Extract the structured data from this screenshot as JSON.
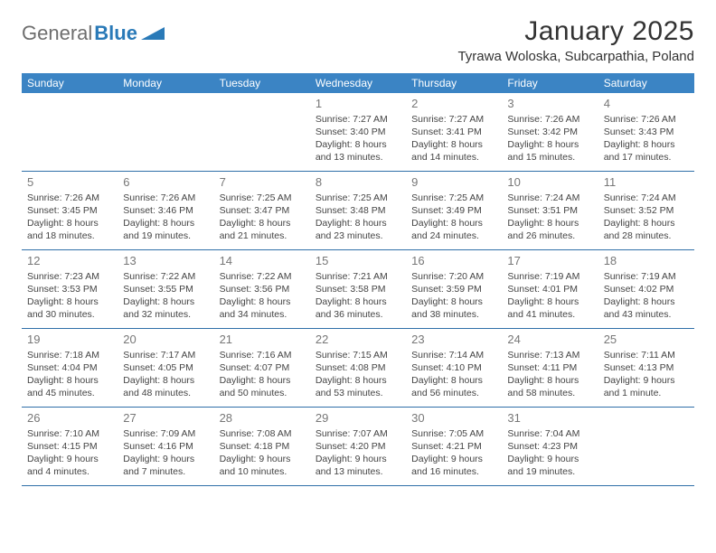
{
  "logo": {
    "general": "General",
    "blue": "Blue"
  },
  "title": "January 2025",
  "location": "Tyrawa Woloska, Subcarpathia, Poland",
  "colors": {
    "header_bg": "#3b84c4",
    "header_text": "#ffffff",
    "rule": "#2f6fa8",
    "daynum": "#777777",
    "body_text": "#444444",
    "logo_grey": "#6e6e6e",
    "logo_blue": "#2a7ab8",
    "page_bg": "#ffffff"
  },
  "day_names": [
    "Sunday",
    "Monday",
    "Tuesday",
    "Wednesday",
    "Thursday",
    "Friday",
    "Saturday"
  ],
  "weeks": [
    [
      null,
      null,
      null,
      {
        "n": "1",
        "sr": "Sunrise: 7:27 AM",
        "ss": "Sunset: 3:40 PM",
        "d1": "Daylight: 8 hours",
        "d2": "and 13 minutes."
      },
      {
        "n": "2",
        "sr": "Sunrise: 7:27 AM",
        "ss": "Sunset: 3:41 PM",
        "d1": "Daylight: 8 hours",
        "d2": "and 14 minutes."
      },
      {
        "n": "3",
        "sr": "Sunrise: 7:26 AM",
        "ss": "Sunset: 3:42 PM",
        "d1": "Daylight: 8 hours",
        "d2": "and 15 minutes."
      },
      {
        "n": "4",
        "sr": "Sunrise: 7:26 AM",
        "ss": "Sunset: 3:43 PM",
        "d1": "Daylight: 8 hours",
        "d2": "and 17 minutes."
      }
    ],
    [
      {
        "n": "5",
        "sr": "Sunrise: 7:26 AM",
        "ss": "Sunset: 3:45 PM",
        "d1": "Daylight: 8 hours",
        "d2": "and 18 minutes."
      },
      {
        "n": "6",
        "sr": "Sunrise: 7:26 AM",
        "ss": "Sunset: 3:46 PM",
        "d1": "Daylight: 8 hours",
        "d2": "and 19 minutes."
      },
      {
        "n": "7",
        "sr": "Sunrise: 7:25 AM",
        "ss": "Sunset: 3:47 PM",
        "d1": "Daylight: 8 hours",
        "d2": "and 21 minutes."
      },
      {
        "n": "8",
        "sr": "Sunrise: 7:25 AM",
        "ss": "Sunset: 3:48 PM",
        "d1": "Daylight: 8 hours",
        "d2": "and 23 minutes."
      },
      {
        "n": "9",
        "sr": "Sunrise: 7:25 AM",
        "ss": "Sunset: 3:49 PM",
        "d1": "Daylight: 8 hours",
        "d2": "and 24 minutes."
      },
      {
        "n": "10",
        "sr": "Sunrise: 7:24 AM",
        "ss": "Sunset: 3:51 PM",
        "d1": "Daylight: 8 hours",
        "d2": "and 26 minutes."
      },
      {
        "n": "11",
        "sr": "Sunrise: 7:24 AM",
        "ss": "Sunset: 3:52 PM",
        "d1": "Daylight: 8 hours",
        "d2": "and 28 minutes."
      }
    ],
    [
      {
        "n": "12",
        "sr": "Sunrise: 7:23 AM",
        "ss": "Sunset: 3:53 PM",
        "d1": "Daylight: 8 hours",
        "d2": "and 30 minutes."
      },
      {
        "n": "13",
        "sr": "Sunrise: 7:22 AM",
        "ss": "Sunset: 3:55 PM",
        "d1": "Daylight: 8 hours",
        "d2": "and 32 minutes."
      },
      {
        "n": "14",
        "sr": "Sunrise: 7:22 AM",
        "ss": "Sunset: 3:56 PM",
        "d1": "Daylight: 8 hours",
        "d2": "and 34 minutes."
      },
      {
        "n": "15",
        "sr": "Sunrise: 7:21 AM",
        "ss": "Sunset: 3:58 PM",
        "d1": "Daylight: 8 hours",
        "d2": "and 36 minutes."
      },
      {
        "n": "16",
        "sr": "Sunrise: 7:20 AM",
        "ss": "Sunset: 3:59 PM",
        "d1": "Daylight: 8 hours",
        "d2": "and 38 minutes."
      },
      {
        "n": "17",
        "sr": "Sunrise: 7:19 AM",
        "ss": "Sunset: 4:01 PM",
        "d1": "Daylight: 8 hours",
        "d2": "and 41 minutes."
      },
      {
        "n": "18",
        "sr": "Sunrise: 7:19 AM",
        "ss": "Sunset: 4:02 PM",
        "d1": "Daylight: 8 hours",
        "d2": "and 43 minutes."
      }
    ],
    [
      {
        "n": "19",
        "sr": "Sunrise: 7:18 AM",
        "ss": "Sunset: 4:04 PM",
        "d1": "Daylight: 8 hours",
        "d2": "and 45 minutes."
      },
      {
        "n": "20",
        "sr": "Sunrise: 7:17 AM",
        "ss": "Sunset: 4:05 PM",
        "d1": "Daylight: 8 hours",
        "d2": "and 48 minutes."
      },
      {
        "n": "21",
        "sr": "Sunrise: 7:16 AM",
        "ss": "Sunset: 4:07 PM",
        "d1": "Daylight: 8 hours",
        "d2": "and 50 minutes."
      },
      {
        "n": "22",
        "sr": "Sunrise: 7:15 AM",
        "ss": "Sunset: 4:08 PM",
        "d1": "Daylight: 8 hours",
        "d2": "and 53 minutes."
      },
      {
        "n": "23",
        "sr": "Sunrise: 7:14 AM",
        "ss": "Sunset: 4:10 PM",
        "d1": "Daylight: 8 hours",
        "d2": "and 56 minutes."
      },
      {
        "n": "24",
        "sr": "Sunrise: 7:13 AM",
        "ss": "Sunset: 4:11 PM",
        "d1": "Daylight: 8 hours",
        "d2": "and 58 minutes."
      },
      {
        "n": "25",
        "sr": "Sunrise: 7:11 AM",
        "ss": "Sunset: 4:13 PM",
        "d1": "Daylight: 9 hours",
        "d2": "and 1 minute."
      }
    ],
    [
      {
        "n": "26",
        "sr": "Sunrise: 7:10 AM",
        "ss": "Sunset: 4:15 PM",
        "d1": "Daylight: 9 hours",
        "d2": "and 4 minutes."
      },
      {
        "n": "27",
        "sr": "Sunrise: 7:09 AM",
        "ss": "Sunset: 4:16 PM",
        "d1": "Daylight: 9 hours",
        "d2": "and 7 minutes."
      },
      {
        "n": "28",
        "sr": "Sunrise: 7:08 AM",
        "ss": "Sunset: 4:18 PM",
        "d1": "Daylight: 9 hours",
        "d2": "and 10 minutes."
      },
      {
        "n": "29",
        "sr": "Sunrise: 7:07 AM",
        "ss": "Sunset: 4:20 PM",
        "d1": "Daylight: 9 hours",
        "d2": "and 13 minutes."
      },
      {
        "n": "30",
        "sr": "Sunrise: 7:05 AM",
        "ss": "Sunset: 4:21 PM",
        "d1": "Daylight: 9 hours",
        "d2": "and 16 minutes."
      },
      {
        "n": "31",
        "sr": "Sunrise: 7:04 AM",
        "ss": "Sunset: 4:23 PM",
        "d1": "Daylight: 9 hours",
        "d2": "and 19 minutes."
      },
      null
    ]
  ]
}
